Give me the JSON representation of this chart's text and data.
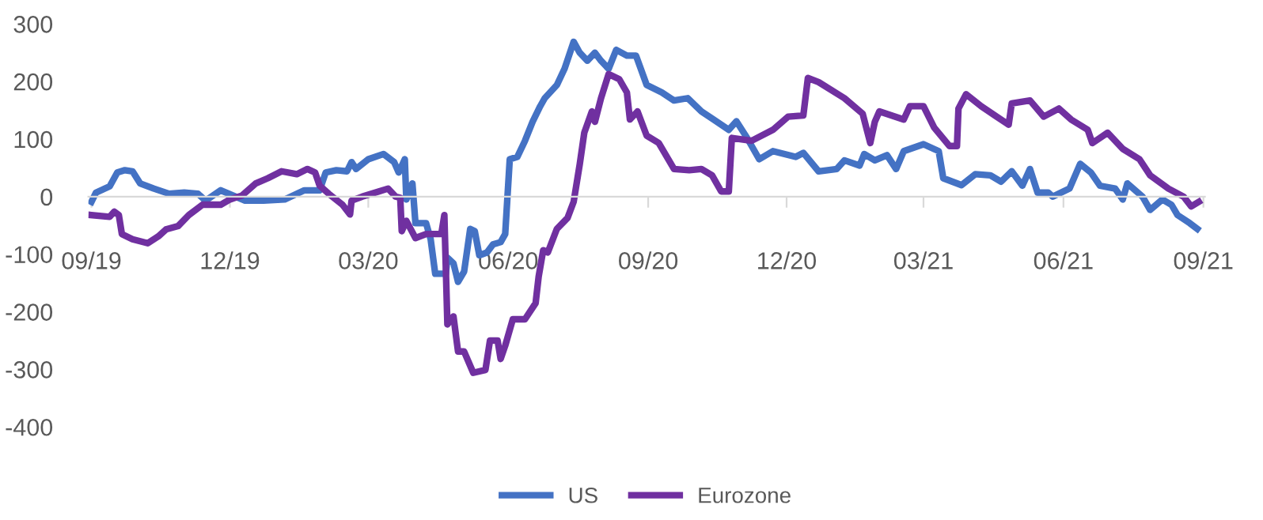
{
  "chart_data": {
    "type": "line",
    "legend": "bottom",
    "grid": false,
    "line_style": "solid",
    "marker": "none",
    "xlim": [
      "2019-08-30",
      "2021-09-02"
    ],
    "ylim": [
      -400,
      300
    ],
    "yticks": [
      -400,
      -300,
      -200,
      -100,
      0,
      100,
      200,
      300
    ],
    "xticks": [
      {
        "value": "2019-09-01",
        "label": "09/19"
      },
      {
        "value": "2019-12-01",
        "label": "12/19"
      },
      {
        "value": "2020-03-01",
        "label": "03/20"
      },
      {
        "value": "2020-06-01",
        "label": "06/20"
      },
      {
        "value": "2020-09-01",
        "label": "09/20"
      },
      {
        "value": "2020-12-01",
        "label": "12/20"
      },
      {
        "value": "2021-03-01",
        "label": "03/21"
      },
      {
        "value": "2021-06-01",
        "label": "06/21"
      },
      {
        "value": "2021-09-01",
        "label": "09/21"
      }
    ],
    "series": [
      {
        "name": "US",
        "color": "#4472c4",
        "x": [
          "2019-09-01",
          "2019-09-04",
          "2019-09-13",
          "2019-09-18",
          "2019-09-23",
          "2019-09-28",
          "2019-10-03",
          "2019-10-12",
          "2019-10-22",
          "2019-11-01",
          "2019-11-10",
          "2019-11-15",
          "2019-11-25",
          "2019-12-03",
          "2019-12-11",
          "2019-12-23",
          "2020-01-06",
          "2020-01-14",
          "2020-01-19",
          "2020-01-29",
          "2020-02-02",
          "2020-02-09",
          "2020-02-16",
          "2020-02-19",
          "2020-02-22",
          "2020-03-01",
          "2020-03-11",
          "2020-03-18",
          "2020-03-21",
          "2020-03-25",
          "2020-03-26",
          "2020-03-30",
          "2020-04-01",
          "2020-04-08",
          "2020-04-11",
          "2020-04-14",
          "2020-04-21",
          "2020-04-22",
          "2020-04-26",
          "2020-04-29",
          "2020-05-03",
          "2020-05-07",
          "2020-05-10",
          "2020-05-13",
          "2020-05-18",
          "2020-05-22",
          "2020-05-27",
          "2020-05-30",
          "2020-06-02",
          "2020-06-07",
          "2020-06-12",
          "2020-06-17",
          "2020-06-22",
          "2020-06-25",
          "2020-07-03",
          "2020-07-08",
          "2020-07-14",
          "2020-07-18",
          "2020-07-23",
          "2020-07-28",
          "2020-08-01",
          "2020-08-06",
          "2020-08-11",
          "2020-08-18",
          "2020-08-24",
          "2020-08-31",
          "2020-09-10",
          "2020-09-18",
          "2020-09-27",
          "2020-10-06",
          "2020-10-14",
          "2020-10-24",
          "2020-10-29",
          "2020-11-05",
          "2020-11-13",
          "2020-11-22",
          "2020-12-07",
          "2020-12-12",
          "2020-12-22",
          "2021-01-03",
          "2021-01-08",
          "2021-01-18",
          "2021-01-21",
          "2021-01-28",
          "2021-02-05",
          "2021-02-11",
          "2021-02-16",
          "2021-03-01",
          "2021-03-11",
          "2021-03-14",
          "2021-03-26",
          "2021-04-04",
          "2021-04-14",
          "2021-04-21",
          "2021-04-28",
          "2021-05-05",
          "2021-05-10",
          "2021-05-15",
          "2021-05-22",
          "2021-05-25",
          "2021-06-05",
          "2021-06-12",
          "2021-06-19",
          "2021-06-25",
          "2021-07-05",
          "2021-07-10",
          "2021-07-13",
          "2021-07-23",
          "2021-07-28",
          "2021-08-05",
          "2021-08-11",
          "2021-08-15",
          "2021-08-23",
          "2021-08-28"
        ],
        "values": [
          -9,
          7,
          18,
          42,
          46,
          44,
          23,
          14,
          5,
          7,
          5,
          -7,
          11,
          2,
          -7,
          -7,
          -5,
          5,
          11,
          11,
          42,
          46,
          44,
          60,
          48,
          65,
          74,
          60,
          42,
          65,
          -5,
          23,
          -46,
          -46,
          -74,
          -134,
          -134,
          -106,
          -116,
          -148,
          -130,
          -56,
          -60,
          -102,
          -97,
          -83,
          -79,
          -65,
          65,
          69,
          97,
          130,
          157,
          171,
          194,
          222,
          269,
          250,
          236,
          250,
          236,
          222,
          255,
          245,
          245,
          194,
          181,
          167,
          171,
          148,
          134,
          116,
          131,
          102,
          65,
          79,
          69,
          76,
          44,
          48,
          63,
          54,
          74,
          63,
          72,
          48,
          79,
          91,
          79,
          32,
          20,
          39,
          37,
          26,
          44,
          19,
          48,
          7,
          7,
          0,
          14,
          57,
          42,
          19,
          14,
          -5,
          23,
          0,
          -23,
          -5,
          -14,
          -32,
          -46,
          -56
        ]
      },
      {
        "name": "Eurozone",
        "color": "#7030a0",
        "x": [
          "2019-09-01",
          "2019-09-13",
          "2019-09-16",
          "2019-09-19",
          "2019-09-21",
          "2019-09-28",
          "2019-10-08",
          "2019-10-15",
          "2019-10-20",
          "2019-10-28",
          "2019-11-04",
          "2019-11-13",
          "2019-11-25",
          "2019-12-01",
          "2019-12-09",
          "2019-12-18",
          "2019-12-26",
          "2020-01-04",
          "2020-01-14",
          "2020-01-21",
          "2020-01-26",
          "2020-01-29",
          "2020-02-04",
          "2020-02-13",
          "2020-02-18",
          "2020-02-19",
          "2020-02-26",
          "2020-03-08",
          "2020-03-14",
          "2020-03-19",
          "2020-03-22",
          "2020-03-23",
          "2020-03-26",
          "2020-04-01",
          "2020-04-08",
          "2020-04-18",
          "2020-04-20",
          "2020-04-22",
          "2020-04-26",
          "2020-04-29",
          "2020-05-03",
          "2020-05-09",
          "2020-05-17",
          "2020-05-20",
          "2020-05-25",
          "2020-05-27",
          "2020-05-30",
          "2020-06-04",
          "2020-06-12",
          "2020-06-19",
          "2020-06-21",
          "2020-06-24",
          "2020-06-27",
          "2020-07-03",
          "2020-07-10",
          "2020-07-14",
          "2020-07-18",
          "2020-07-21",
          "2020-07-26",
          "2020-07-28",
          "2020-08-01",
          "2020-08-06",
          "2020-08-13",
          "2020-08-18",
          "2020-08-20",
          "2020-08-25",
          "2020-08-31",
          "2020-09-08",
          "2020-09-18",
          "2020-09-28",
          "2020-10-06",
          "2020-10-13",
          "2020-10-19",
          "2020-10-24",
          "2020-10-26",
          "2020-11-08",
          "2020-11-22",
          "2020-12-02",
          "2020-12-12",
          "2020-12-15",
          "2020-12-22",
          "2021-01-08",
          "2021-01-20",
          "2021-01-25",
          "2021-01-28",
          "2021-01-31",
          "2021-02-16",
          "2021-02-20",
          "2021-03-01",
          "2021-03-08",
          "2021-03-18",
          "2021-03-23",
          "2021-03-24",
          "2021-03-29",
          "2021-04-08",
          "2021-04-18",
          "2021-04-26",
          "2021-04-28",
          "2021-05-10",
          "2021-05-19",
          "2021-05-29",
          "2021-06-06",
          "2021-06-17",
          "2021-06-20",
          "2021-06-30",
          "2021-07-10",
          "2021-07-21",
          "2021-07-28",
          "2021-08-09",
          "2021-08-19",
          "2021-08-24",
          "2021-08-29"
        ],
        "values": [
          -32,
          -35,
          -26,
          -32,
          -65,
          -74,
          -81,
          -69,
          -57,
          -51,
          -32,
          -14,
          -14,
          -5,
          2,
          23,
          32,
          44,
          39,
          48,
          42,
          19,
          5,
          -14,
          -31,
          -7,
          0,
          9,
          14,
          0,
          -2,
          -60,
          -42,
          -72,
          -65,
          -65,
          -32,
          -222,
          -208,
          -269,
          -269,
          -306,
          -301,
          -250,
          -250,
          -282,
          -259,
          -213,
          -213,
          -185,
          -139,
          -93,
          -97,
          -56,
          -37,
          -9,
          56,
          111,
          148,
          130,
          171,
          213,
          204,
          181,
          134,
          148,
          106,
          93,
          48,
          46,
          48,
          37,
          9,
          9,
          102,
          97,
          116,
          139,
          141,
          206,
          199,
          171,
          144,
          93,
          130,
          148,
          134,
          157,
          157,
          120,
          88,
          88,
          153,
          178,
          157,
          139,
          125,
          162,
          167,
          139,
          153,
          134,
          116,
          93,
          111,
          83,
          65,
          37,
          14,
          0,
          -17,
          -9
        ]
      }
    ]
  }
}
